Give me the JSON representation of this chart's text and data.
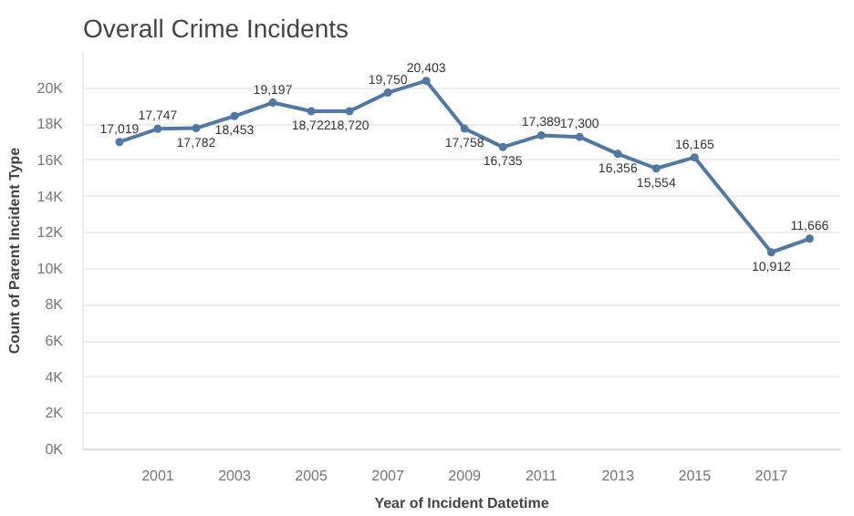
{
  "chart_data": {
    "type": "line",
    "title": "Overall Crime Incidents",
    "xlabel": "Year of Incident Datetime",
    "ylabel": "Count of Parent Incident Type",
    "x": [
      2000,
      2001,
      2002,
      2003,
      2004,
      2005,
      2006,
      2007,
      2008,
      2009,
      2010,
      2011,
      2012,
      2013,
      2014,
      2015,
      2017,
      2018
    ],
    "series": [
      {
        "color": "#4e79a7",
        "values": [
          17019,
          17747,
          17782,
          18453,
          19197,
          18722,
          18720,
          19750,
          20403,
          17758,
          16735,
          17389,
          17300,
          16356,
          15554,
          16165,
          10912,
          11666
        ],
        "value_labels": [
          "17,019",
          "17,747",
          "17,782",
          "18,453",
          "19,197",
          "18,722",
          "18,720",
          "19,750",
          "20,403",
          "17,758",
          "16,735",
          "17,389",
          "17,300",
          "16,356",
          "15,554",
          "16,165",
          "10,912",
          "11,666"
        ]
      }
    ],
    "xlim": [
      1999.05,
      2018.8
    ],
    "xticks": [
      2001,
      2003,
      2005,
      2007,
      2009,
      2011,
      2013,
      2015,
      2017
    ],
    "ylim": [
      0,
      22000
    ],
    "yticks": [
      {
        "value": 0,
        "label": "0K"
      },
      {
        "value": 2000,
        "label": "2K"
      },
      {
        "value": 4000,
        "label": "4K"
      },
      {
        "value": 6000,
        "label": "6K"
      },
      {
        "value": 8000,
        "label": "8K"
      },
      {
        "value": 10000,
        "label": "10K"
      },
      {
        "value": 12000,
        "label": "12K"
      },
      {
        "value": 14000,
        "label": "14K"
      },
      {
        "value": 16000,
        "label": "16K"
      },
      {
        "value": 18000,
        "label": "18K"
      },
      {
        "value": 20000,
        "label": "20K"
      }
    ],
    "grid": "y",
    "marker": "circle",
    "line_style": "solid"
  }
}
